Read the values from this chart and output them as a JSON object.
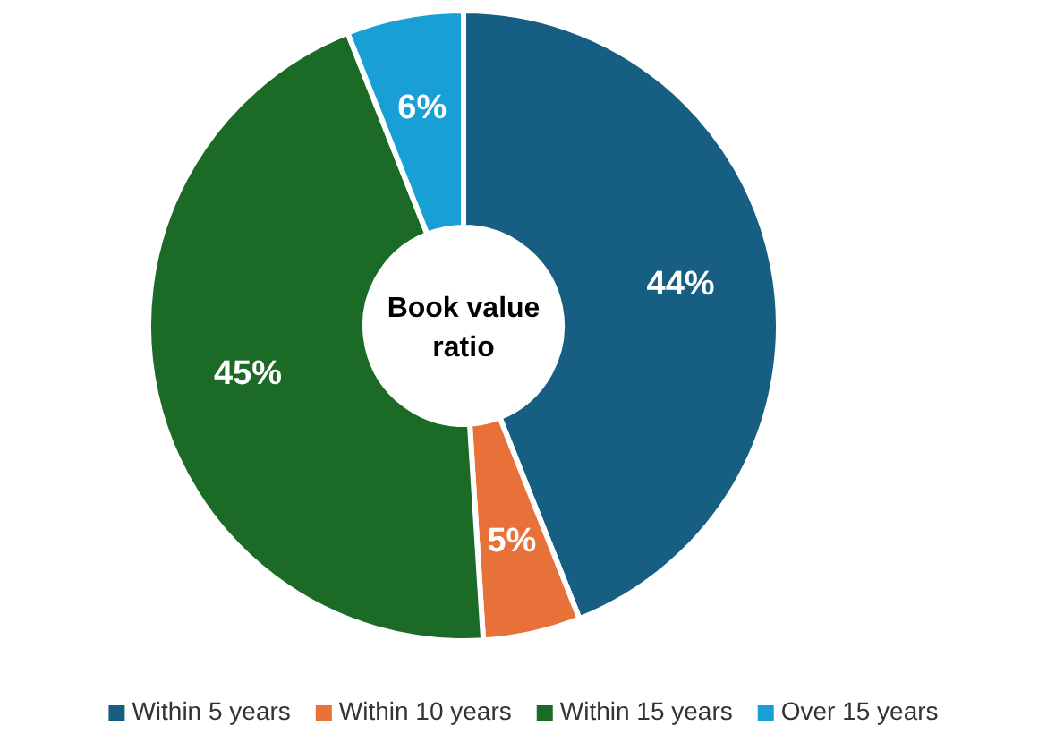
{
  "chart_data": {
    "type": "donut",
    "title": "Book value ratio",
    "categories": [
      "Within 5 years",
      "Within 10 years",
      "Within 15 years",
      "Over 15 years"
    ],
    "values": [
      44,
      5,
      45,
      6
    ],
    "colors": [
      "#175f82",
      "#e8713a",
      "#1b6b27",
      "#179fd6"
    ],
    "value_labels": [
      "44%",
      "5%",
      "45%",
      "6%"
    ],
    "legend": "bottom"
  }
}
